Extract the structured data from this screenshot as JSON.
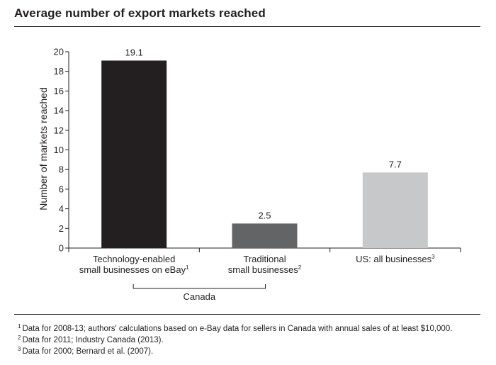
{
  "chart_data": {
    "type": "bar",
    "title": "Average number of export markets reached",
    "ylabel": "Number of markets reached",
    "ylim": [
      0,
      20
    ],
    "yticks": [
      0,
      2,
      4,
      6,
      8,
      10,
      12,
      14,
      16,
      18,
      20
    ],
    "categories": [
      {
        "lines": [
          "Technology-enabled",
          "small businesses on eBay"
        ],
        "sup": "1"
      },
      {
        "lines": [
          "Traditional",
          "small businesses"
        ],
        "sup": "2"
      },
      {
        "lines": [
          "US: all businesses"
        ],
        "sup": "3"
      }
    ],
    "values": [
      19.1,
      2.5,
      7.7
    ],
    "data_labels": [
      "19.1",
      "2.5",
      "7.7"
    ],
    "colors": [
      "#231f20",
      "#636466",
      "#c7c8ca"
    ],
    "group_bracket": {
      "label": "Canada",
      "spans_categories": [
        0,
        1
      ]
    },
    "grid": false
  },
  "footnotes": [
    {
      "sup": "1",
      "text": "Data for 2008-13; authors' calculations based on e-Bay data for sellers in Canada with annual sales of at least $10,000."
    },
    {
      "sup": "2",
      "text": "Data for 2011; Industry Canada (2013)."
    },
    {
      "sup": "3",
      "text": "Data for 2000; Bernard et al. (2007)."
    }
  ]
}
